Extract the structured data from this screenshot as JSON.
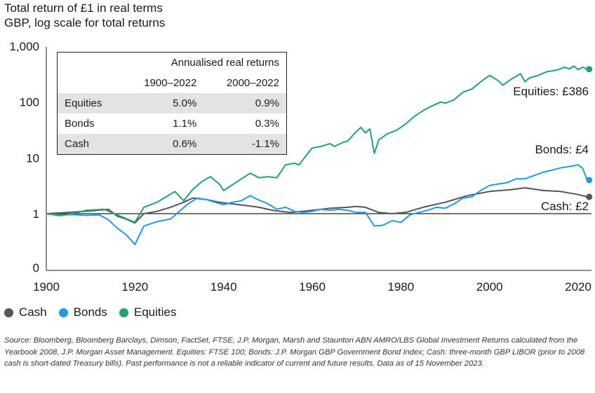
{
  "header": {
    "title": "Total return of £1 in real terms",
    "subtitle": "GBP, log scale for total returns"
  },
  "returns_table": {
    "caption": "Annualised real returns",
    "period_headers": [
      "1900–2022",
      "2000–2022"
    ],
    "rows": [
      {
        "label": "Equities",
        "values": [
          "5.0%",
          "0.9%"
        ],
        "shaded": true
      },
      {
        "label": "Bonds",
        "values": [
          "1.1%",
          "0.3%"
        ],
        "shaded": false
      },
      {
        "label": "Cash",
        "values": [
          "0.6%",
          "-1.1%"
        ],
        "shaded": true
      }
    ]
  },
  "legend": [
    {
      "label": "Cash",
      "color": "#555555"
    },
    {
      "label": "Bonds",
      "color": "#1f9be6"
    },
    {
      "label": "Equities",
      "color": "#21a36b"
    }
  ],
  "end_labels": {
    "equities": "Equities: £386",
    "bonds": "Bonds: £4",
    "cash": "Cash: £2"
  },
  "source_text": "Source: Bloomberg, Bloomberg Barclays, Dimson, FactSet, FTSE, J.P. Morgan, Marsh and Staunton ABN AMRO/LBS Global Investment Returns calculated from the Yearbook 2008, J.P. Morgan Asset Management. Equities: FTSE 100; Bonds: J.P. Morgan GBP Government Bond Index; Cash: three-month GBP LIBOR (prior to 2008 cash is short-dated Treasury bills). Past performance is not a reliable indicator of current and future results. Data as of 15 November 2023.",
  "chart_data": {
    "type": "line",
    "title": "Total return of £1 in real terms",
    "subtitle": "GBP, log scale for total returns",
    "y_scale": "log",
    "xlim": [
      1900,
      2023
    ],
    "x_ticks": [
      1900,
      1920,
      1940,
      1960,
      1980,
      2000,
      2020
    ],
    "x_tick_labels": [
      "1900",
      "1920",
      "1940",
      "1960",
      "1980",
      "2000",
      "2020"
    ],
    "y_ticks": [
      1,
      10,
      100,
      1000
    ],
    "y_tick_labels": [
      "1",
      "10",
      "100",
      "1,000"
    ],
    "y_bottom_label": "0",
    "grid": false,
    "reference_line": 1,
    "legend_position": "bottom-left",
    "series": [
      {
        "name": "Equities",
        "color": "#21a36b",
        "points": [
          [
            1900,
            1.0
          ],
          [
            1903,
            0.92
          ],
          [
            1906,
            1.0
          ],
          [
            1909,
            1.15
          ],
          [
            1913,
            1.2
          ],
          [
            1916,
            0.95
          ],
          [
            1920,
            0.7
          ],
          [
            1922,
            1.3
          ],
          [
            1925,
            1.6
          ],
          [
            1927,
            2.0
          ],
          [
            1929,
            2.5
          ],
          [
            1931,
            1.7
          ],
          [
            1933,
            2.7
          ],
          [
            1935,
            3.7
          ],
          [
            1937,
            4.6
          ],
          [
            1939,
            3.4
          ],
          [
            1940,
            2.6
          ],
          [
            1942,
            3.3
          ],
          [
            1944,
            4.2
          ],
          [
            1946,
            5.3
          ],
          [
            1948,
            4.4
          ],
          [
            1950,
            4.6
          ],
          [
            1952,
            4.4
          ],
          [
            1954,
            7.5
          ],
          [
            1956,
            8.0
          ],
          [
            1957,
            7.5
          ],
          [
            1959,
            12.0
          ],
          [
            1960,
            15.0
          ],
          [
            1962,
            16.0
          ],
          [
            1964,
            18.0
          ],
          [
            1965,
            16.0
          ],
          [
            1967,
            19.0
          ],
          [
            1968,
            20.0
          ],
          [
            1970,
            30.0
          ],
          [
            1971,
            35.0
          ],
          [
            1972,
            28.0
          ],
          [
            1973,
            33.0
          ],
          [
            1974,
            12.0
          ],
          [
            1975,
            21.0
          ],
          [
            1977,
            27.0
          ],
          [
            1979,
            31.0
          ],
          [
            1981,
            40.0
          ],
          [
            1983,
            55.0
          ],
          [
            1985,
            70.0
          ],
          [
            1987,
            85.0
          ],
          [
            1989,
            100.0
          ],
          [
            1990,
            95.0
          ],
          [
            1992,
            110.0
          ],
          [
            1994,
            150.0
          ],
          [
            1996,
            170.0
          ],
          [
            1998,
            230.0
          ],
          [
            2000,
            300.0
          ],
          [
            2002,
            240.0
          ],
          [
            2003,
            200.0
          ],
          [
            2005,
            260.0
          ],
          [
            2007,
            320.0
          ],
          [
            2008,
            230.0
          ],
          [
            2009,
            270.0
          ],
          [
            2011,
            300.0
          ],
          [
            2013,
            350.0
          ],
          [
            2015,
            370.0
          ],
          [
            2017,
            420.0
          ],
          [
            2018,
            390.0
          ],
          [
            2019,
            440.0
          ],
          [
            2020,
            380.0
          ],
          [
            2021,
            420.0
          ],
          [
            2022,
            386.0
          ]
        ]
      },
      {
        "name": "Bonds",
        "color": "#1f9be6",
        "points": [
          [
            1900,
            1.0
          ],
          [
            1903,
            0.95
          ],
          [
            1906,
            0.96
          ],
          [
            1909,
            0.93
          ],
          [
            1912,
            0.95
          ],
          [
            1914,
            0.78
          ],
          [
            1916,
            0.55
          ],
          [
            1918,
            0.42
          ],
          [
            1920,
            0.28
          ],
          [
            1922,
            0.6
          ],
          [
            1925,
            0.72
          ],
          [
            1928,
            0.8
          ],
          [
            1930,
            1.1
          ],
          [
            1932,
            1.5
          ],
          [
            1934,
            1.9
          ],
          [
            1936,
            1.8
          ],
          [
            1938,
            1.6
          ],
          [
            1940,
            1.45
          ],
          [
            1942,
            1.6
          ],
          [
            1944,
            1.7
          ],
          [
            1946,
            2.1
          ],
          [
            1947,
            1.9
          ],
          [
            1950,
            1.5
          ],
          [
            1952,
            1.2
          ],
          [
            1954,
            1.3
          ],
          [
            1956,
            1.1
          ],
          [
            1958,
            1.05
          ],
          [
            1960,
            1.1
          ],
          [
            1962,
            1.2
          ],
          [
            1964,
            1.15
          ],
          [
            1966,
            1.2
          ],
          [
            1968,
            1.15
          ],
          [
            1970,
            1.05
          ],
          [
            1972,
            1.05
          ],
          [
            1974,
            0.6
          ],
          [
            1976,
            0.62
          ],
          [
            1978,
            0.75
          ],
          [
            1980,
            0.7
          ],
          [
            1982,
            0.95
          ],
          [
            1984,
            1.05
          ],
          [
            1986,
            1.15
          ],
          [
            1988,
            1.3
          ],
          [
            1990,
            1.25
          ],
          [
            1992,
            1.5
          ],
          [
            1994,
            1.9
          ],
          [
            1996,
            2.0
          ],
          [
            1998,
            2.6
          ],
          [
            2000,
            3.2
          ],
          [
            2002,
            3.4
          ],
          [
            2004,
            3.6
          ],
          [
            2006,
            4.2
          ],
          [
            2008,
            4.2
          ],
          [
            2010,
            4.8
          ],
          [
            2012,
            5.5
          ],
          [
            2014,
            6.0
          ],
          [
            2016,
            6.6
          ],
          [
            2018,
            7.0
          ],
          [
            2020,
            7.5
          ],
          [
            2021,
            6.5
          ],
          [
            2022,
            4.0
          ]
        ]
      },
      {
        "name": "Cash",
        "color": "#555555",
        "points": [
          [
            1900,
            1.0
          ],
          [
            1905,
            1.05
          ],
          [
            1910,
            1.12
          ],
          [
            1914,
            1.2
          ],
          [
            1916,
            0.9
          ],
          [
            1918,
            0.8
          ],
          [
            1920,
            0.68
          ],
          [
            1922,
            1.0
          ],
          [
            1925,
            1.1
          ],
          [
            1928,
            1.3
          ],
          [
            1931,
            1.6
          ],
          [
            1933,
            1.9
          ],
          [
            1936,
            1.8
          ],
          [
            1939,
            1.6
          ],
          [
            1942,
            1.5
          ],
          [
            1945,
            1.4
          ],
          [
            1948,
            1.3
          ],
          [
            1951,
            1.15
          ],
          [
            1955,
            1.05
          ],
          [
            1960,
            1.15
          ],
          [
            1964,
            1.25
          ],
          [
            1968,
            1.3
          ],
          [
            1970,
            1.35
          ],
          [
            1972,
            1.3
          ],
          [
            1975,
            1.05
          ],
          [
            1978,
            1.0
          ],
          [
            1981,
            1.05
          ],
          [
            1985,
            1.3
          ],
          [
            1990,
            1.6
          ],
          [
            1995,
            2.1
          ],
          [
            2000,
            2.5
          ],
          [
            2005,
            2.7
          ],
          [
            2008,
            2.9
          ],
          [
            2012,
            2.6
          ],
          [
            2016,
            2.5
          ],
          [
            2020,
            2.2
          ],
          [
            2022,
            2.0
          ]
        ]
      }
    ]
  }
}
